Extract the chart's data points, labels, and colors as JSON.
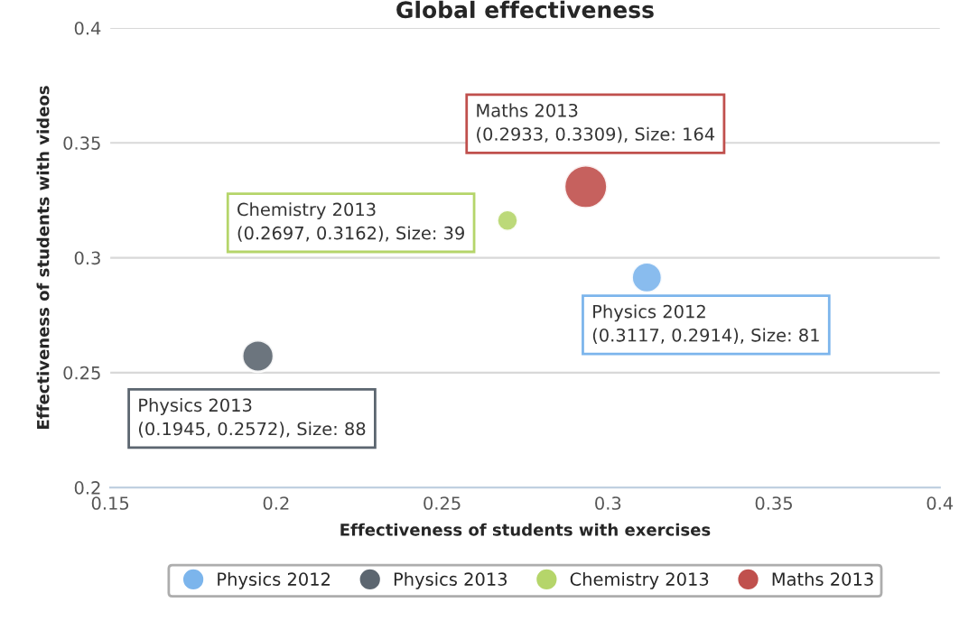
{
  "chart_data": {
    "type": "bubble",
    "title": "Global effectiveness",
    "xlabel": "Effectiveness of students with exercises",
    "ylabel": "Effectiveness of students with videos",
    "series": [
      {
        "name": "Physics 2012",
        "color": "#7cb5ec",
        "x": [
          0.3117
        ],
        "values": [
          0.2914
        ],
        "sizes": [
          0.494
        ],
        "value_labels": [
          "(0.3117, 0.2914), Size: 81"
        ]
      },
      {
        "name": "Physics 2013",
        "color": "#5c6670",
        "x": [
          0.1945
        ],
        "values": [
          0.2572
        ],
        "sizes": [
          0.537
        ],
        "value_labels": [
          "(0.1945, 0.2572), Size: 88"
        ]
      },
      {
        "name": "Chemistry 2013",
        "color": "#b5d56a",
        "x": [
          0.2697
        ],
        "values": [
          0.3162
        ],
        "sizes": [
          0.238
        ],
        "value_labels": [
          "(0.2697, 0.3162), Size: 39"
        ]
      },
      {
        "name": "Maths 2013",
        "color": "#c0504d",
        "x": [
          0.2933
        ],
        "values": [
          0.3309
        ],
        "sizes": [
          1
        ],
        "value_labels": [
          "(0.2933, 0.3309), Size: 164"
        ]
      }
    ],
    "xlim": [
      0.15,
      0.4
    ],
    "ylim": [
      0.2,
      0.4
    ],
    "xticks": [
      0.15,
      0.2,
      0.25,
      0.3,
      0.35,
      0.4
    ],
    "yticks": [
      0.2,
      0.25,
      0.3,
      0.35,
      0.4
    ],
    "grid": "y",
    "legend": "bottom"
  }
}
